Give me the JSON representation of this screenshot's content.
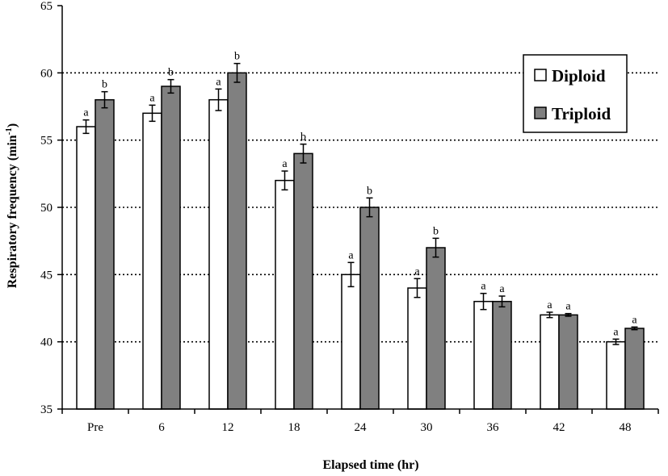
{
  "chart_data": {
    "type": "bar",
    "title": "",
    "xlabel": "Elapsed time (hr)",
    "ylabel": "Respiratory frequency (min",
    "ylabel_superscript": "-1",
    "ylabel_suffix": ")",
    "ylim": [
      35,
      65
    ],
    "yticks": [
      35,
      40,
      45,
      50,
      55,
      60,
      65
    ],
    "grid": "horizontal dotted at 40, 45, 50, 55, 60",
    "legend_position": "top-right",
    "categories": [
      "Pre",
      "6",
      "12",
      "18",
      "24",
      "30",
      "36",
      "42",
      "48"
    ],
    "series": [
      {
        "name": "Diploid",
        "color": "#ffffff",
        "values": [
          56,
          57,
          58,
          52,
          45,
          44,
          43,
          42,
          40
        ],
        "errors": [
          0.5,
          0.6,
          0.8,
          0.7,
          0.9,
          0.7,
          0.6,
          0.2,
          0.2
        ],
        "labels": [
          "a",
          "a",
          "a",
          "a",
          "a",
          "a",
          "a",
          "a",
          "a"
        ]
      },
      {
        "name": "Triploid",
        "color": "#808080",
        "values": [
          58,
          59,
          60,
          54,
          50,
          47,
          43,
          42,
          41
        ],
        "errors": [
          0.6,
          0.5,
          0.7,
          0.7,
          0.7,
          0.7,
          0.4,
          0.1,
          0.1
        ],
        "labels": [
          "b",
          "b",
          "b",
          "b",
          "b",
          "b",
          "a",
          "a",
          "a"
        ]
      }
    ]
  }
}
